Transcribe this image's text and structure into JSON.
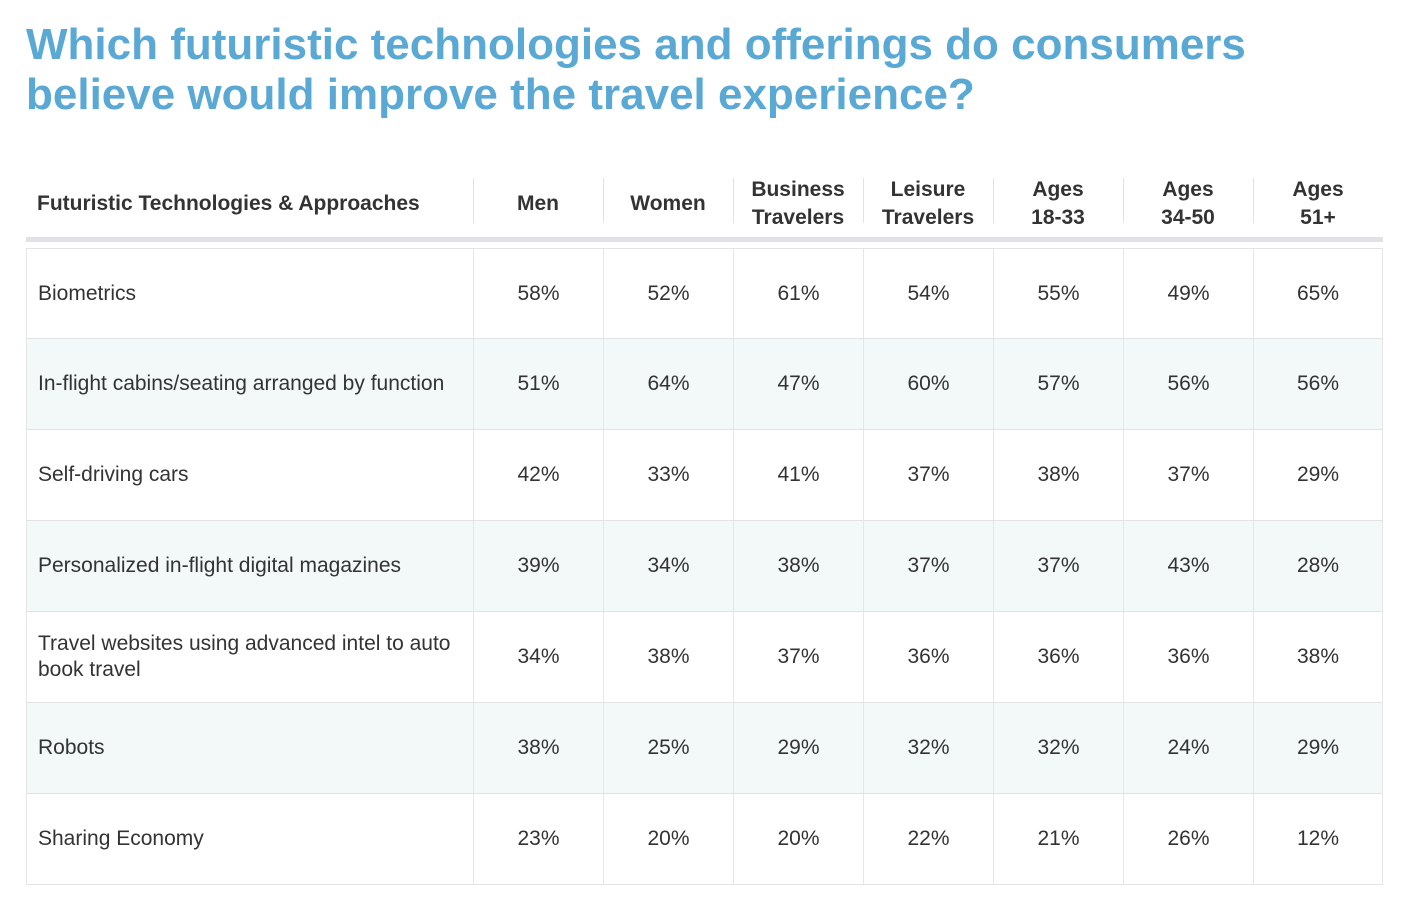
{
  "title_line1": "Which futuristic technologies and offerings do consumers",
  "title_line2": "believe would improve the travel experience?",
  "chart_data": {
    "type": "table",
    "columns": [
      "Futuristic Technologies & Approaches",
      "Men",
      "Women",
      "Business\nTravelers",
      "Leisure\nTravelers",
      "Ages\n18-33",
      "Ages\n34-50",
      "Ages\n51+"
    ],
    "rows": [
      {
        "label": "Biometrics",
        "values": [
          "58%",
          "52%",
          "61%",
          "54%",
          "55%",
          "49%",
          "65%"
        ]
      },
      {
        "label": "In-flight cabins/seating arranged by function",
        "values": [
          "51%",
          "64%",
          "47%",
          "60%",
          "57%",
          "56%",
          "56%"
        ]
      },
      {
        "label": "Self-driving cars",
        "values": [
          "42%",
          "33%",
          "41%",
          "37%",
          "38%",
          "37%",
          "29%"
        ]
      },
      {
        "label": "Personalized in-flight digital magazines",
        "values": [
          "39%",
          "34%",
          "38%",
          "37%",
          "37%",
          "43%",
          "28%"
        ]
      },
      {
        "label": "Travel websites using advanced intel to auto book travel",
        "values": [
          "34%",
          "38%",
          "37%",
          "36%",
          "36%",
          "36%",
          "38%"
        ]
      },
      {
        "label": "Robots",
        "values": [
          "38%",
          "25%",
          "29%",
          "32%",
          "32%",
          "24%",
          "29%"
        ]
      },
      {
        "label": "Sharing Economy",
        "values": [
          "23%",
          "20%",
          "20%",
          "22%",
          "21%",
          "26%",
          "12%"
        ]
      }
    ]
  },
  "colors": {
    "title": "#5aa9d4",
    "text": "#333333",
    "alt_row": "#f3f8f8",
    "header_rule": "#e2e1e8"
  }
}
